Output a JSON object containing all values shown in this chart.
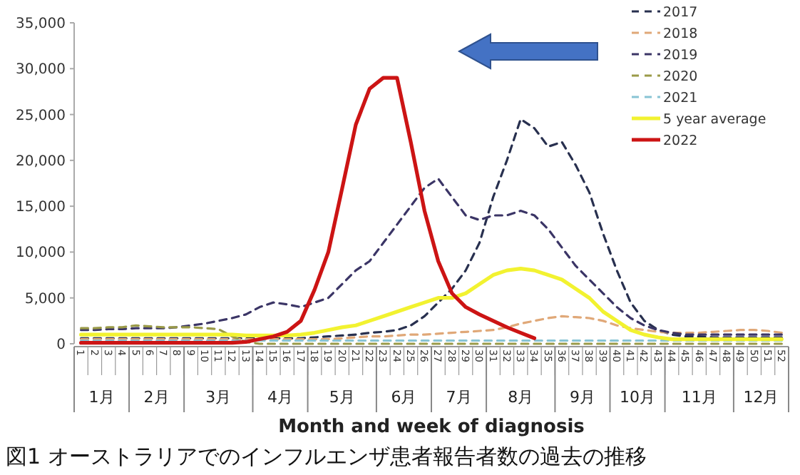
{
  "chart_data": {
    "type": "line",
    "title": "図1 オーストラリアでのインフルエンザ患者報告者数の過去の推移",
    "xlabel": "Month and week of diagnosis",
    "categories": [
      "1",
      "2",
      "3",
      "4",
      "5",
      "6",
      "7",
      "8",
      "9",
      "10",
      "11",
      "12",
      "13",
      "14",
      "15",
      "16",
      "17",
      "18",
      "19",
      "20",
      "21",
      "22",
      "23",
      "24",
      "25",
      "26",
      "27",
      "28",
      "29",
      "30",
      "31",
      "32",
      "33",
      "34",
      "35",
      "36",
      "37",
      "38",
      "39",
      "40",
      "41",
      "42",
      "43",
      "44",
      "45",
      "46",
      "47",
      "48",
      "49",
      "50",
      "51",
      "52"
    ],
    "annotations": [
      "1月",
      "2月",
      "3月",
      "4月",
      "5月",
      "6月",
      "7月",
      "8月",
      "9月",
      "10月",
      "11月",
      "12月"
    ],
    "ylim": [
      0,
      35000
    ],
    "yticks": [
      {
        "value": 0,
        "label": "0"
      },
      {
        "value": 5000,
        "label": "5,000"
      },
      {
        "value": 10000,
        "label": "10,000"
      },
      {
        "value": 15000,
        "label": "15,000"
      },
      {
        "value": 20000,
        "label": "20,000"
      },
      {
        "value": 25000,
        "label": "25,000"
      },
      {
        "value": 30000,
        "label": "30,000"
      },
      {
        "value": 35000,
        "label": "35,000"
      }
    ],
    "grid": false,
    "legend": "top right",
    "marker": "none",
    "series": [
      {
        "name": "2017",
        "color": "#28304f",
        "line_style": "dashed",
        "values": [
          600,
          600,
          600,
          600,
          600,
          600,
          600,
          600,
          600,
          600,
          600,
          600,
          600,
          600,
          600,
          600,
          600,
          700,
          800,
          900,
          1000,
          1200,
          1300,
          1500,
          2000,
          3000,
          4500,
          6000,
          8000,
          11000,
          16000,
          20000,
          24500,
          23500,
          21500,
          22000,
          19500,
          16500,
          12000,
          8000,
          4500,
          2500,
          1500,
          1000,
          800,
          800,
          700,
          700,
          700,
          700,
          700,
          700
        ]
      },
      {
        "name": "2018",
        "color": "#e0a878",
        "line_style": "dashed",
        "values": [
          500,
          500,
          500,
          500,
          500,
          500,
          500,
          500,
          500,
          500,
          500,
          500,
          500,
          500,
          500,
          500,
          500,
          500,
          500,
          600,
          700,
          800,
          800,
          900,
          1000,
          1000,
          1100,
          1200,
          1300,
          1400,
          1500,
          1800,
          2200,
          2500,
          2800,
          3000,
          2900,
          2800,
          2500,
          2000,
          1700,
          1500,
          1300,
          1200,
          1200,
          1200,
          1300,
          1400,
          1500,
          1500,
          1400,
          1200
        ]
      },
      {
        "name": "2019",
        "color": "#3b3566",
        "line_style": "dashed",
        "values": [
          1500,
          1500,
          1600,
          1600,
          1700,
          1700,
          1700,
          1800,
          2000,
          2200,
          2500,
          2800,
          3200,
          4000,
          4500,
          4300,
          4000,
          4500,
          5000,
          6500,
          8000,
          9000,
          11000,
          13000,
          15000,
          17000,
          18000,
          16000,
          14000,
          13500,
          14000,
          14000,
          14500,
          14000,
          12500,
          10500,
          8500,
          7000,
          5500,
          4000,
          2800,
          2000,
          1500,
          1200,
          1000,
          1000,
          1000,
          1000,
          1000,
          1000,
          1000,
          1000
        ]
      },
      {
        "name": "2020",
        "color": "#9a9a48",
        "line_style": "dashed",
        "values": [
          1700,
          1700,
          1800,
          1800,
          2000,
          1900,
          1800,
          1800,
          1800,
          1700,
          1600,
          800,
          200,
          0,
          0,
          0,
          0,
          0,
          0,
          0,
          0,
          0,
          0,
          0,
          0,
          0,
          0,
          0,
          0,
          0,
          0,
          0,
          0,
          0,
          0,
          0,
          0,
          0,
          0,
          0,
          0,
          0,
          0,
          0,
          0,
          0,
          0,
          0,
          0,
          0,
          0,
          0
        ]
      },
      {
        "name": "2021",
        "color": "#88c4d4",
        "line_style": "dashed",
        "values": [
          350,
          350,
          350,
          350,
          350,
          350,
          350,
          350,
          350,
          350,
          350,
          350,
          350,
          350,
          350,
          350,
          350,
          350,
          350,
          350,
          350,
          350,
          350,
          350,
          350,
          350,
          350,
          350,
          350,
          350,
          350,
          350,
          350,
          350,
          350,
          350,
          350,
          350,
          350,
          350,
          350,
          350,
          350,
          350,
          350,
          350,
          350,
          350,
          350,
          350,
          350,
          350
        ]
      },
      {
        "name": "5 year average",
        "color": "#f2f230",
        "line_style": "solid",
        "values": [
          1000,
          1000,
          1000,
          1000,
          1000,
          1000,
          1000,
          1000,
          1000,
          1000,
          1000,
          1000,
          900,
          900,
          900,
          900,
          1000,
          1200,
          1500,
          1800,
          2000,
          2500,
          3000,
          3500,
          4000,
          4500,
          5000,
          5000,
          5500,
          6500,
          7500,
          8000,
          8200,
          8000,
          7500,
          7000,
          6000,
          5000,
          3500,
          2500,
          1500,
          1000,
          700,
          500,
          500,
          500,
          500,
          500,
          500,
          500,
          500,
          500
        ]
      },
      {
        "name": "2022",
        "color": "#cc1414",
        "line_style": "solid",
        "values": [
          100,
          100,
          100,
          100,
          100,
          100,
          100,
          100,
          100,
          100,
          100,
          100,
          200,
          500,
          800,
          1300,
          2500,
          5900,
          10000,
          16900,
          23900,
          27800,
          29000,
          29000,
          22000,
          14500,
          9000,
          5500,
          4000,
          3200,
          2500,
          1800,
          1200,
          600,
          null,
          null,
          null,
          null,
          null,
          null,
          null,
          null,
          null,
          null,
          null,
          null,
          null,
          null,
          null,
          null,
          null,
          null
        ]
      }
    ]
  }
}
